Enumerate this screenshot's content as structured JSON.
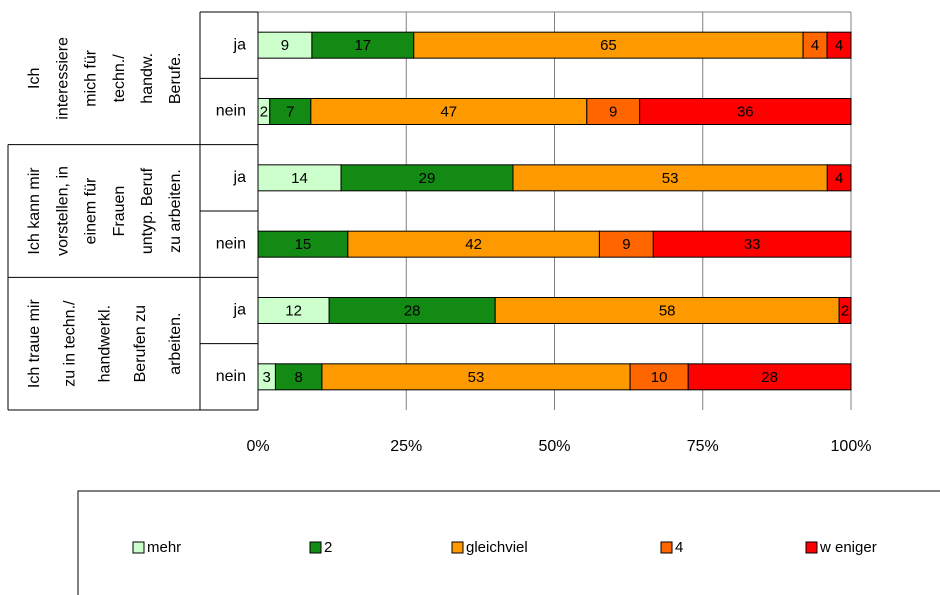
{
  "chart_data": {
    "type": "bar",
    "orientation": "horizontal",
    "stacked_percent": true,
    "group_labels": [
      [
        "Ich",
        "interessiere",
        "mich für",
        "techn./",
        "handw.",
        "Berufe."
      ],
      [
        "Ich kann mir",
        "vorstellen, in",
        "einem für",
        "Frauen",
        "untyp. Beruf",
        "zu arbeiten."
      ],
      [
        "Ich traue mir",
        "zu in techn./",
        "handwerkl.",
        "Berufen zu",
        "arbeiten."
      ]
    ],
    "categories": [
      "ja",
      "nein",
      "ja",
      "nein",
      "ja",
      "nein"
    ],
    "series": [
      {
        "name": "mehr",
        "color": "#ccffcc",
        "values": [
          9,
          2,
          14,
          null,
          12,
          3
        ]
      },
      {
        "name": "2",
        "color": "#138a13",
        "values": [
          17,
          7,
          29,
          15,
          28,
          8
        ]
      },
      {
        "name": "gleichviel",
        "color": "#ff9900",
        "values": [
          65,
          47,
          53,
          42,
          58,
          53
        ]
      },
      {
        "name": "4",
        "color": "#ff6600",
        "values": [
          4,
          9,
          null,
          9,
          null,
          10
        ]
      },
      {
        "name": "w eniger",
        "color": "#ff0000",
        "values": [
          4,
          36,
          4,
          33,
          2,
          28
        ]
      }
    ],
    "xlim": [
      0,
      100
    ],
    "xticks": [
      {
        "value": 0,
        "label": "0%"
      },
      {
        "value": 25,
        "label": "25%"
      },
      {
        "value": 50,
        "label": "50%"
      },
      {
        "value": 75,
        "label": "75%"
      },
      {
        "value": 100,
        "label": "100%"
      }
    ],
    "grid": true
  }
}
